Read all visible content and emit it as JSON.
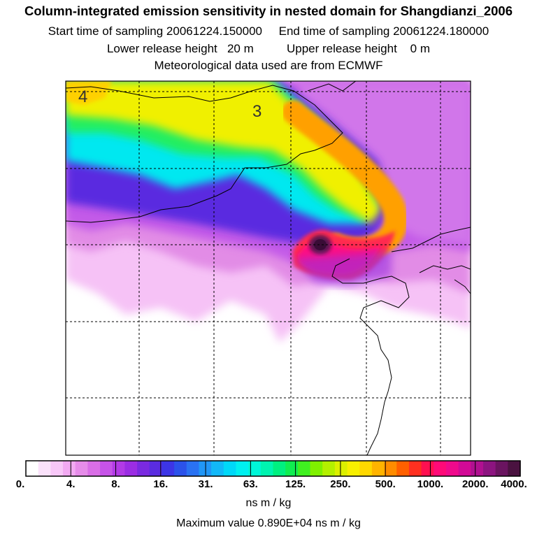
{
  "title": {
    "line1": "Column-integrated emission sensitivity in nested domain for Shangdianzi_2006",
    "line2": "Start time of sampling 20061224.150000     End time of sampling 20061224.180000",
    "line3": "Lower release height   20 m          Upper release height    0 m",
    "line4": "Meteorological data used are from ECMWF"
  },
  "map": {
    "contour_labels": [
      "4",
      "3"
    ]
  },
  "colorbar": {
    "labels": [
      "0.",
      "4.",
      "8.",
      "16.",
      "31.",
      "63.",
      "125.",
      "250.",
      "500.",
      "1000.",
      "2000.",
      "4000."
    ],
    "colors": [
      "#ffffff",
      "#fbe2fb",
      "#f8c7f8",
      "#f2a9f2",
      "#e68ce9",
      "#d96ee6",
      "#c653e8",
      "#b23ae6",
      "#9b2de3",
      "#7a2ae0",
      "#5a2ce0",
      "#3c35e6",
      "#2b52ea",
      "#2a72f2",
      "#2196f6",
      "#12b8f8",
      "#00d8f8",
      "#00f0f0",
      "#00f6d8",
      "#00f4b0",
      "#00f080",
      "#10ee50",
      "#40f020",
      "#80f000",
      "#b4f000",
      "#dcf000",
      "#f8f000",
      "#ffd800",
      "#ffb400",
      "#ff8c00",
      "#ff6000",
      "#ff3020",
      "#ff1050",
      "#ff0a78",
      "#f00a8c",
      "#d20a96",
      "#b01090",
      "#8c1480",
      "#6a1460",
      "#4a1240"
    ],
    "units": "ns m / kg"
  },
  "footer": {
    "max_value": "Maximum value  0.890E+04 ns m / kg"
  }
}
